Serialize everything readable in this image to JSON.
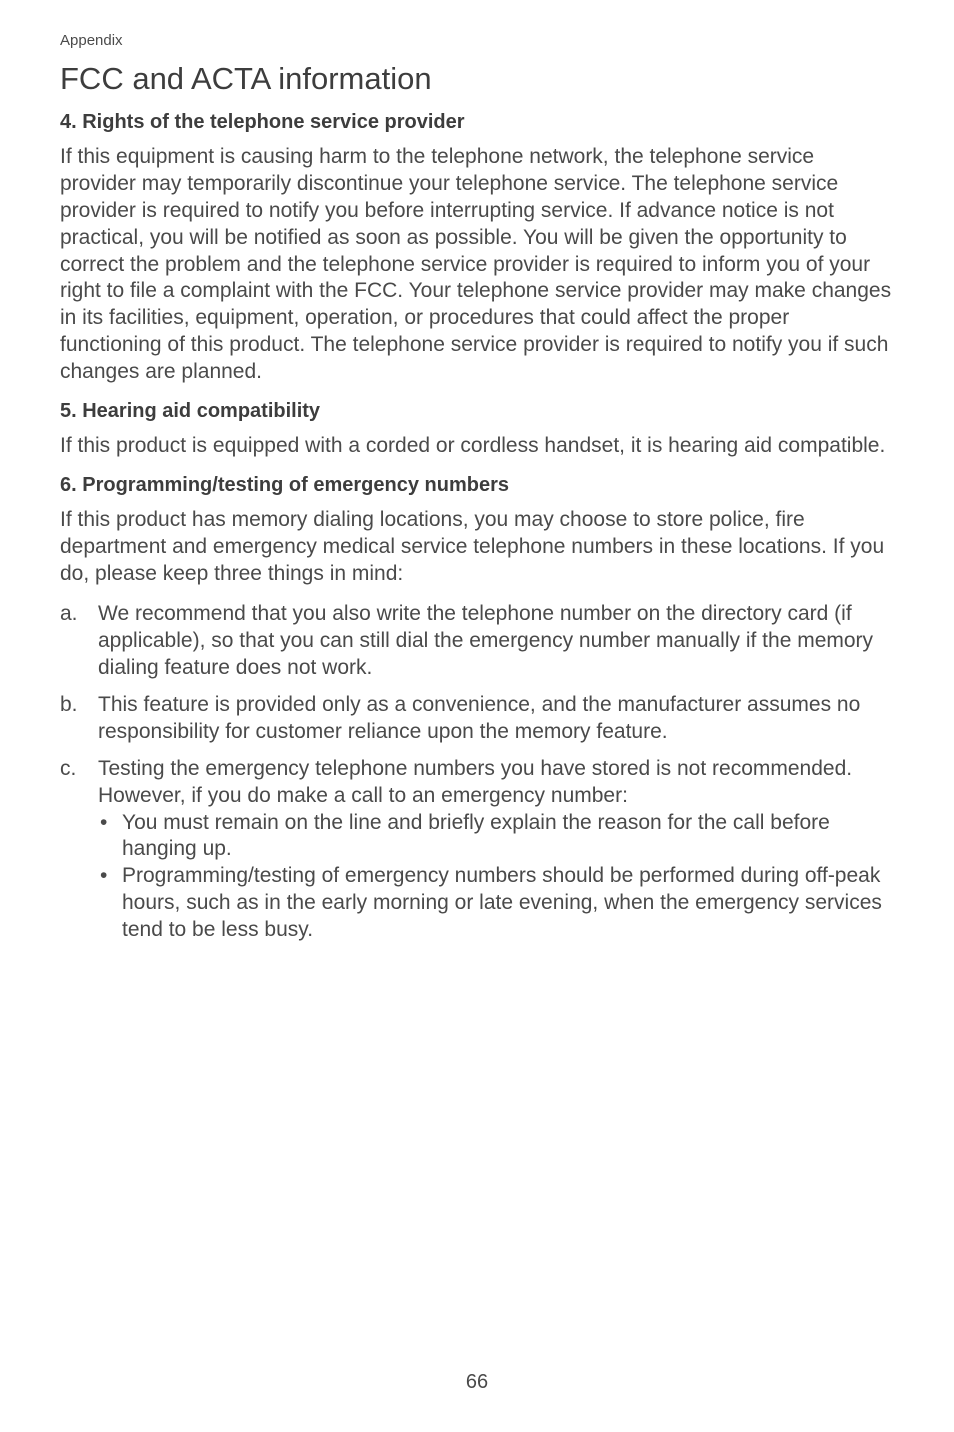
{
  "header": {
    "section_label": "Appendix"
  },
  "title": "FCC and ACTA information",
  "section4": {
    "heading": "4. Rights of the telephone service provider",
    "body": "If this equipment is causing harm to the telephone network, the telephone service provider may temporarily discontinue your telephone service. The telephone service provider is required to notify you before interrupting service. If advance notice is not practical, you will be notified as soon as possible. You will be given the opportunity to correct the problem and the telephone service provider is required to inform you of your right to file a complaint with the FCC. Your telephone service provider may make changes in its facilities, equipment, operation, or procedures that could affect the proper functioning of this product. The telephone service provider is required to notify you if such changes are planned."
  },
  "section5": {
    "heading": "5. Hearing aid compatibility",
    "body": "If this product is equipped with a corded or cordless handset, it is hearing aid compatible."
  },
  "section6": {
    "heading": "6. Programming/testing of emergency numbers",
    "intro": "If this product has memory dialing locations, you may choose to store police, fire department and emergency medical service telephone numbers in these locations. If you do, please keep three things in mind:",
    "items": {
      "a": {
        "marker": "a.",
        "text": "We recommend that you also write the telephone number on the directory card (if applicable), so that you can still dial the emergency number manually if the memory dialing feature does not work."
      },
      "b": {
        "marker": "b.",
        "text": "This feature is provided only as a convenience, and the manufacturer assumes no responsibility for customer reliance upon the memory feature."
      },
      "c": {
        "marker": "c.",
        "text": "Testing the emergency telephone numbers you have stored is not recommended. However, if you do make a call to an emergency number:",
        "bullets": {
          "0": "You must remain on the line and briefly explain the reason for the call before hanging up.",
          "1": "Programming/testing of emergency numbers should be performed during off-peak hours, such as in the early morning or late evening, when the emergency services tend to be less busy."
        }
      }
    }
  },
  "page_number": "66"
}
